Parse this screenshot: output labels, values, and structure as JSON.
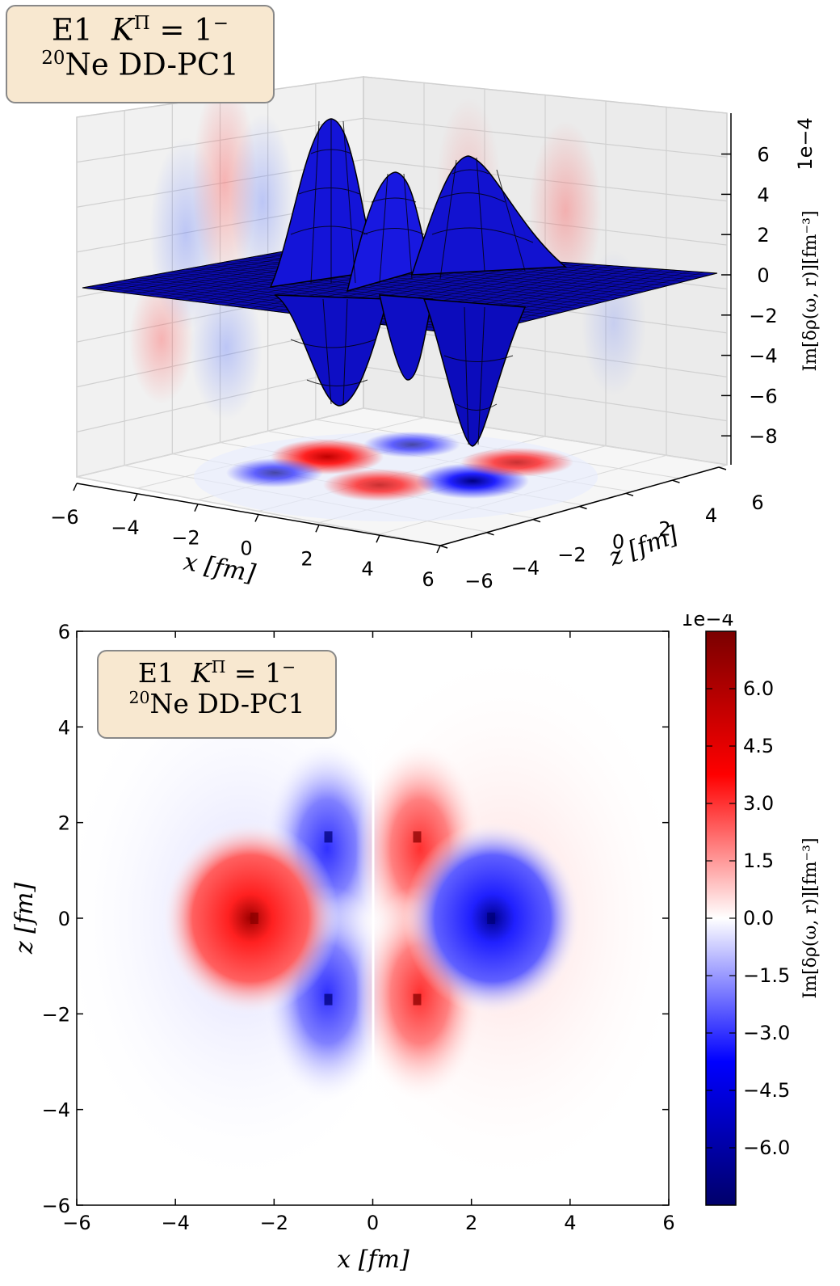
{
  "chart_data": [
    {
      "type": "surface",
      "legend": {
        "line1_prefix": "E1",
        "line1_K": "K",
        "line1_Pi": "Π",
        "line1_eq": "= 1",
        "line1_sign": "−",
        "line2_mass": "20",
        "line2_text": "Ne DD-PC1"
      },
      "xlabel": "x [fm]",
      "ylabel": "z [fm]",
      "zlabel": "Im[δρ(ω, r)][fm⁻³]",
      "zscale_label": "1e−4",
      "x_ticks": [
        "−6",
        "−4",
        "−2",
        "0",
        "2",
        "4",
        "6"
      ],
      "y_ticks": [
        "−6",
        "−4",
        "−2",
        "0",
        "2",
        "4",
        "6"
      ],
      "z_ticks": [
        "6",
        "4",
        "2",
        "0",
        "−2",
        "−4",
        "−6",
        "−8"
      ],
      "xlim": [
        -6,
        6
      ],
      "ylim": [
        -6,
        6
      ],
      "zlim": [
        -8,
        7
      ],
      "surface_color": "#1010cc"
    },
    {
      "type": "heatmap",
      "legend": {
        "line1_prefix": "E1",
        "line1_K": "K",
        "line1_Pi": "Π",
        "line1_eq": "= 1",
        "line1_sign": "−",
        "line2_mass": "20",
        "line2_text": "Ne DD-PC1"
      },
      "xlabel": "x [fm]",
      "ylabel": "z [fm]",
      "xlim": [
        -6,
        6
      ],
      "ylim": [
        -6,
        6
      ],
      "x_ticks": [
        "−6",
        "−4",
        "−2",
        "0",
        "2",
        "4",
        "6"
      ],
      "y_ticks": [
        "6",
        "4",
        "2",
        "0",
        "−2",
        "−4",
        "−6"
      ],
      "colorbar": {
        "label": "Im[δρ(ω, r)][fm⁻³]",
        "scale_label": "1e−4",
        "ticks": [
          "6.0",
          "4.5",
          "3.0",
          "1.5",
          "0.0",
          "−1.5",
          "−3.0",
          "−4.5",
          "−6.0"
        ],
        "range": [
          -7.5,
          7.5
        ],
        "colormap": [
          "#00006a",
          "#0000ff",
          "#ffffff",
          "#ff0000",
          "#7a0000"
        ]
      },
      "features": [
        {
          "x": -2.4,
          "z": 0.0,
          "value": 6.0
        },
        {
          "x": 2.4,
          "z": 0.0,
          "value": -6.0
        },
        {
          "x": -0.9,
          "z": 1.7,
          "value": -4.5
        },
        {
          "x": -0.9,
          "z": -1.7,
          "value": -4.5
        },
        {
          "x": 0.9,
          "z": 1.7,
          "value": 4.5
        },
        {
          "x": 0.9,
          "z": -1.7,
          "value": 4.5
        }
      ]
    }
  ]
}
